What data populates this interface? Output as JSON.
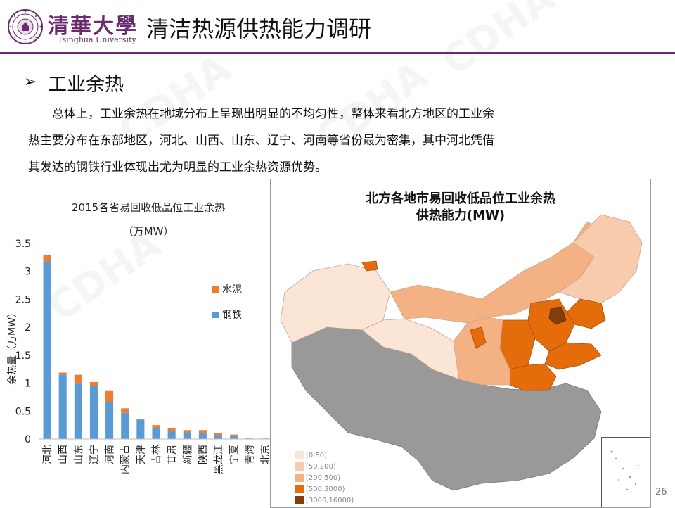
{
  "header": {
    "university_cn": "清華大學",
    "university_en": "Tsinghua University",
    "title": "清洁热源供热能力调研"
  },
  "section": {
    "bullet_icon": "arrowhead-bullet-icon",
    "heading": "工业余热",
    "body_lines": [
      "总体上，工业余热在地域分布上呈现出明显的不均匀性，整体来看北方地区的工业余",
      "热主要分布在东部地区，河北、山西、山东、辽宁、河南等省份最为密集，其中河北凭借",
      "其发达的钢铁行业体现出尤为明显的工业余热资源优势。"
    ]
  },
  "chart_data": {
    "type": "bar",
    "stacked": true,
    "title": "2015各省易回收低品位工业余热",
    "subtitle": "（万MW）",
    "ylabel": "余热量（万MW）",
    "xlabel": "",
    "ylim": [
      0,
      3.5
    ],
    "yticks": [
      "0",
      "0.5",
      "1",
      "1.5",
      "2",
      "2.5",
      "3",
      "3.5"
    ],
    "categories": [
      "河北",
      "山西",
      "山东",
      "辽宁",
      "河南",
      "内蒙古",
      "天津",
      "吉林",
      "甘肃",
      "新疆",
      "陕西",
      "黑龙江",
      "宁夏",
      "青海",
      "北京"
    ],
    "series": [
      {
        "name": "钢铁",
        "color": "#5b9bd5",
        "values": [
          3.18,
          1.15,
          0.99,
          0.95,
          0.66,
          0.47,
          0.35,
          0.19,
          0.15,
          0.12,
          0.1,
          0.07,
          0.05,
          0.01,
          0.0
        ]
      },
      {
        "name": "水泥",
        "color": "#ed7d31",
        "values": [
          0.12,
          0.04,
          0.16,
          0.07,
          0.2,
          0.08,
          0.01,
          0.06,
          0.05,
          0.04,
          0.06,
          0.04,
          0.03,
          0.01,
          0.01
        ]
      }
    ],
    "legend_position": "right",
    "legend_order": [
      "水泥",
      "钢铁"
    ],
    "grid": false
  },
  "map": {
    "title_line1": "北方各地市易回收低品位工业余热",
    "title_line2": "供热能力(MW)",
    "legend": [
      {
        "label": "[0,50)",
        "color": "#fbe5d6"
      },
      {
        "label": "[50,200)",
        "color": "#f8cbad"
      },
      {
        "label": "[200,500)",
        "color": "#f4b183"
      },
      {
        "label": "[500,3000)",
        "color": "#e46c0a"
      },
      {
        "label": "[3000,16000)",
        "color": "#843c0c"
      }
    ],
    "no_data_color": "#999999"
  },
  "page_number": "26",
  "watermark": "CDHA"
}
